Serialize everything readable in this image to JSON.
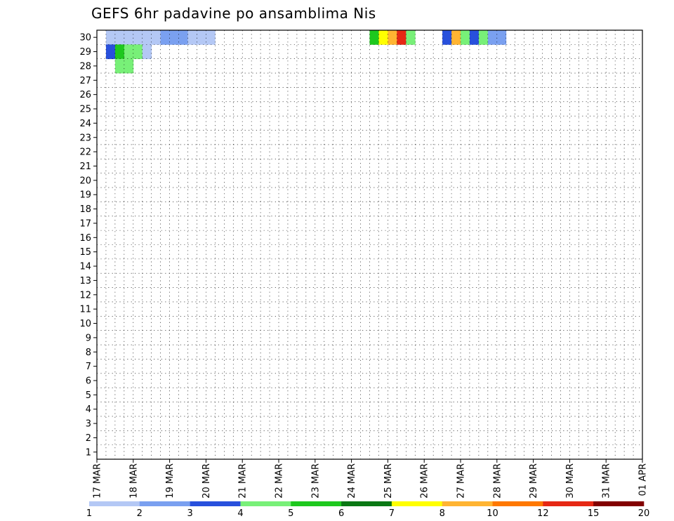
{
  "chart_data": {
    "type": "heatmap",
    "title": "GEFS 6hr padavine po ansamblima Nis",
    "xlabel": "",
    "ylabel": "",
    "x_ticks": [
      "17 MAR",
      "18 MAR",
      "19 MAR",
      "20 MAR",
      "21 MAR",
      "22 MAR",
      "23 MAR",
      "24 MAR",
      "25 MAR",
      "26 MAR",
      "27 MAR",
      "28 MAR",
      "29 MAR",
      "30 MAR",
      "31 MAR",
      "01 APR"
    ],
    "y_ticks": [
      "1",
      "2",
      "3",
      "4",
      "5",
      "6",
      "7",
      "8",
      "9",
      "10",
      "11",
      "12",
      "13",
      "14",
      "15",
      "16",
      "17",
      "18",
      "19",
      "20",
      "21",
      "22",
      "23",
      "24",
      "25",
      "26",
      "27",
      "28",
      "29",
      "30"
    ],
    "grid": true,
    "colorbar": {
      "labels": [
        "1",
        "2",
        "3",
        "4",
        "5",
        "6",
        "7",
        "8",
        "10",
        "12",
        "15",
        "20"
      ],
      "colors": [
        "#b4c8f5",
        "#7aa0f0",
        "#2850dc",
        "#78f078",
        "#1ec81e",
        "#0a7814",
        "#ffff00",
        "#ffb432",
        "#ff7800",
        "#e62814",
        "#820000"
      ]
    },
    "cells": [
      [
        30,
        0,
        1,
        1,
        1,
        1,
        1,
        1,
        2,
        2,
        2,
        1,
        1,
        1,
        0,
        0,
        0,
        0,
        0,
        0,
        0,
        0,
        0,
        0,
        0,
        0,
        0,
        0,
        0,
        0,
        0,
        5,
        7,
        8,
        10,
        4,
        0,
        0,
        0,
        3,
        8,
        4,
        3,
        4,
        2,
        2,
        0,
        0,
        0,
        0,
        0,
        0,
        0,
        0,
        0,
        0,
        0,
        0,
        0,
        0,
        0,
        0,
        0,
        0,
        0,
        0,
        0,
        0,
        0,
        0,
        0,
        0,
        0,
        0,
        0,
        0,
        0,
        0,
        0,
        0,
        0,
        0,
        0,
        0,
        0,
        0,
        0,
        0,
        0,
        0,
        0,
        0,
        0,
        0,
        0,
        0,
        0,
        0,
        0,
        0,
        0,
        0,
        0,
        0,
        0,
        0,
        0,
        0,
        0,
        0,
        0,
        0,
        0,
        0,
        0,
        0,
        0,
        0,
        0,
        0,
        0,
        0,
        0,
        0,
        0,
        0,
        0,
        0,
        0,
        0,
        0,
        0,
        0,
        0,
        0,
        0,
        0,
        0,
        0,
        0,
        0,
        0,
        0,
        0,
        0,
        0,
        0,
        0,
        0,
        0,
        0,
        0,
        0,
        0,
        0,
        0,
        0
      ],
      [
        29,
        0,
        3,
        5,
        4,
        4,
        1,
        0,
        0,
        0,
        0,
        0,
        0,
        0,
        0,
        0,
        0,
        0,
        0,
        0,
        0,
        0,
        0,
        0,
        0,
        0,
        0,
        0,
        0,
        0,
        0,
        0,
        0,
        0,
        0,
        0,
        0,
        0,
        0,
        0,
        0,
        0,
        0,
        0,
        0,
        0,
        0,
        0,
        0,
        0,
        0,
        0,
        0,
        0,
        0,
        0,
        0,
        0,
        0,
        0,
        0,
        0,
        0,
        0,
        0,
        0,
        0,
        0,
        0,
        0,
        0,
        0,
        0,
        0,
        0,
        0,
        0,
        0,
        0,
        0,
        0,
        0,
        0,
        0,
        0,
        0,
        0,
        0,
        0,
        0,
        0,
        0,
        0,
        0,
        0,
        0,
        0,
        0,
        0,
        0,
        0,
        0,
        0,
        0,
        0,
        0,
        0,
        0,
        0,
        0,
        0,
        0,
        0,
        0,
        0,
        0,
        0,
        0,
        0,
        0,
        0,
        0,
        0,
        0,
        0,
        0,
        0,
        0,
        0,
        0,
        0,
        0,
        0,
        0,
        0,
        0,
        0,
        0,
        0,
        0,
        0,
        0,
        0,
        0,
        0,
        0,
        0,
        0,
        0,
        0,
        0,
        0,
        0,
        0,
        0,
        0,
        0
      ],
      [
        28,
        0,
        0,
        4,
        4,
        0,
        0,
        0,
        0,
        0,
        0,
        0,
        0,
        0,
        0,
        0,
        0,
        0,
        0,
        0,
        0,
        0,
        0,
        0,
        0,
        0,
        0,
        0,
        0,
        0,
        0,
        0,
        0,
        0,
        0,
        0,
        0,
        0,
        0,
        0,
        0,
        0,
        0,
        0,
        0,
        0,
        0,
        0,
        0,
        0,
        0,
        0,
        0,
        0,
        0,
        0,
        0,
        0,
        0,
        0,
        0,
        0,
        0,
        0,
        0,
        0,
        0,
        0,
        0,
        0,
        0,
        0,
        0,
        0,
        0,
        0,
        0,
        0,
        0,
        0,
        0,
        0,
        0,
        0,
        0,
        0,
        0,
        0,
        0,
        0,
        0,
        0,
        0,
        0,
        0,
        0,
        0,
        0,
        0,
        0,
        0,
        0,
        0,
        0,
        0,
        0,
        0,
        0,
        0,
        0,
        0,
        0,
        0,
        0,
        0,
        0,
        0,
        0,
        0,
        0,
        0,
        0,
        0,
        0,
        0,
        0,
        0,
        0,
        0,
        0,
        0,
        0,
        0,
        0,
        0,
        0,
        0,
        0,
        0,
        0,
        0,
        0,
        0,
        0,
        0,
        0,
        0,
        0,
        0,
        0,
        0,
        0,
        0,
        0,
        0,
        0,
        0
      ]
    ]
  }
}
